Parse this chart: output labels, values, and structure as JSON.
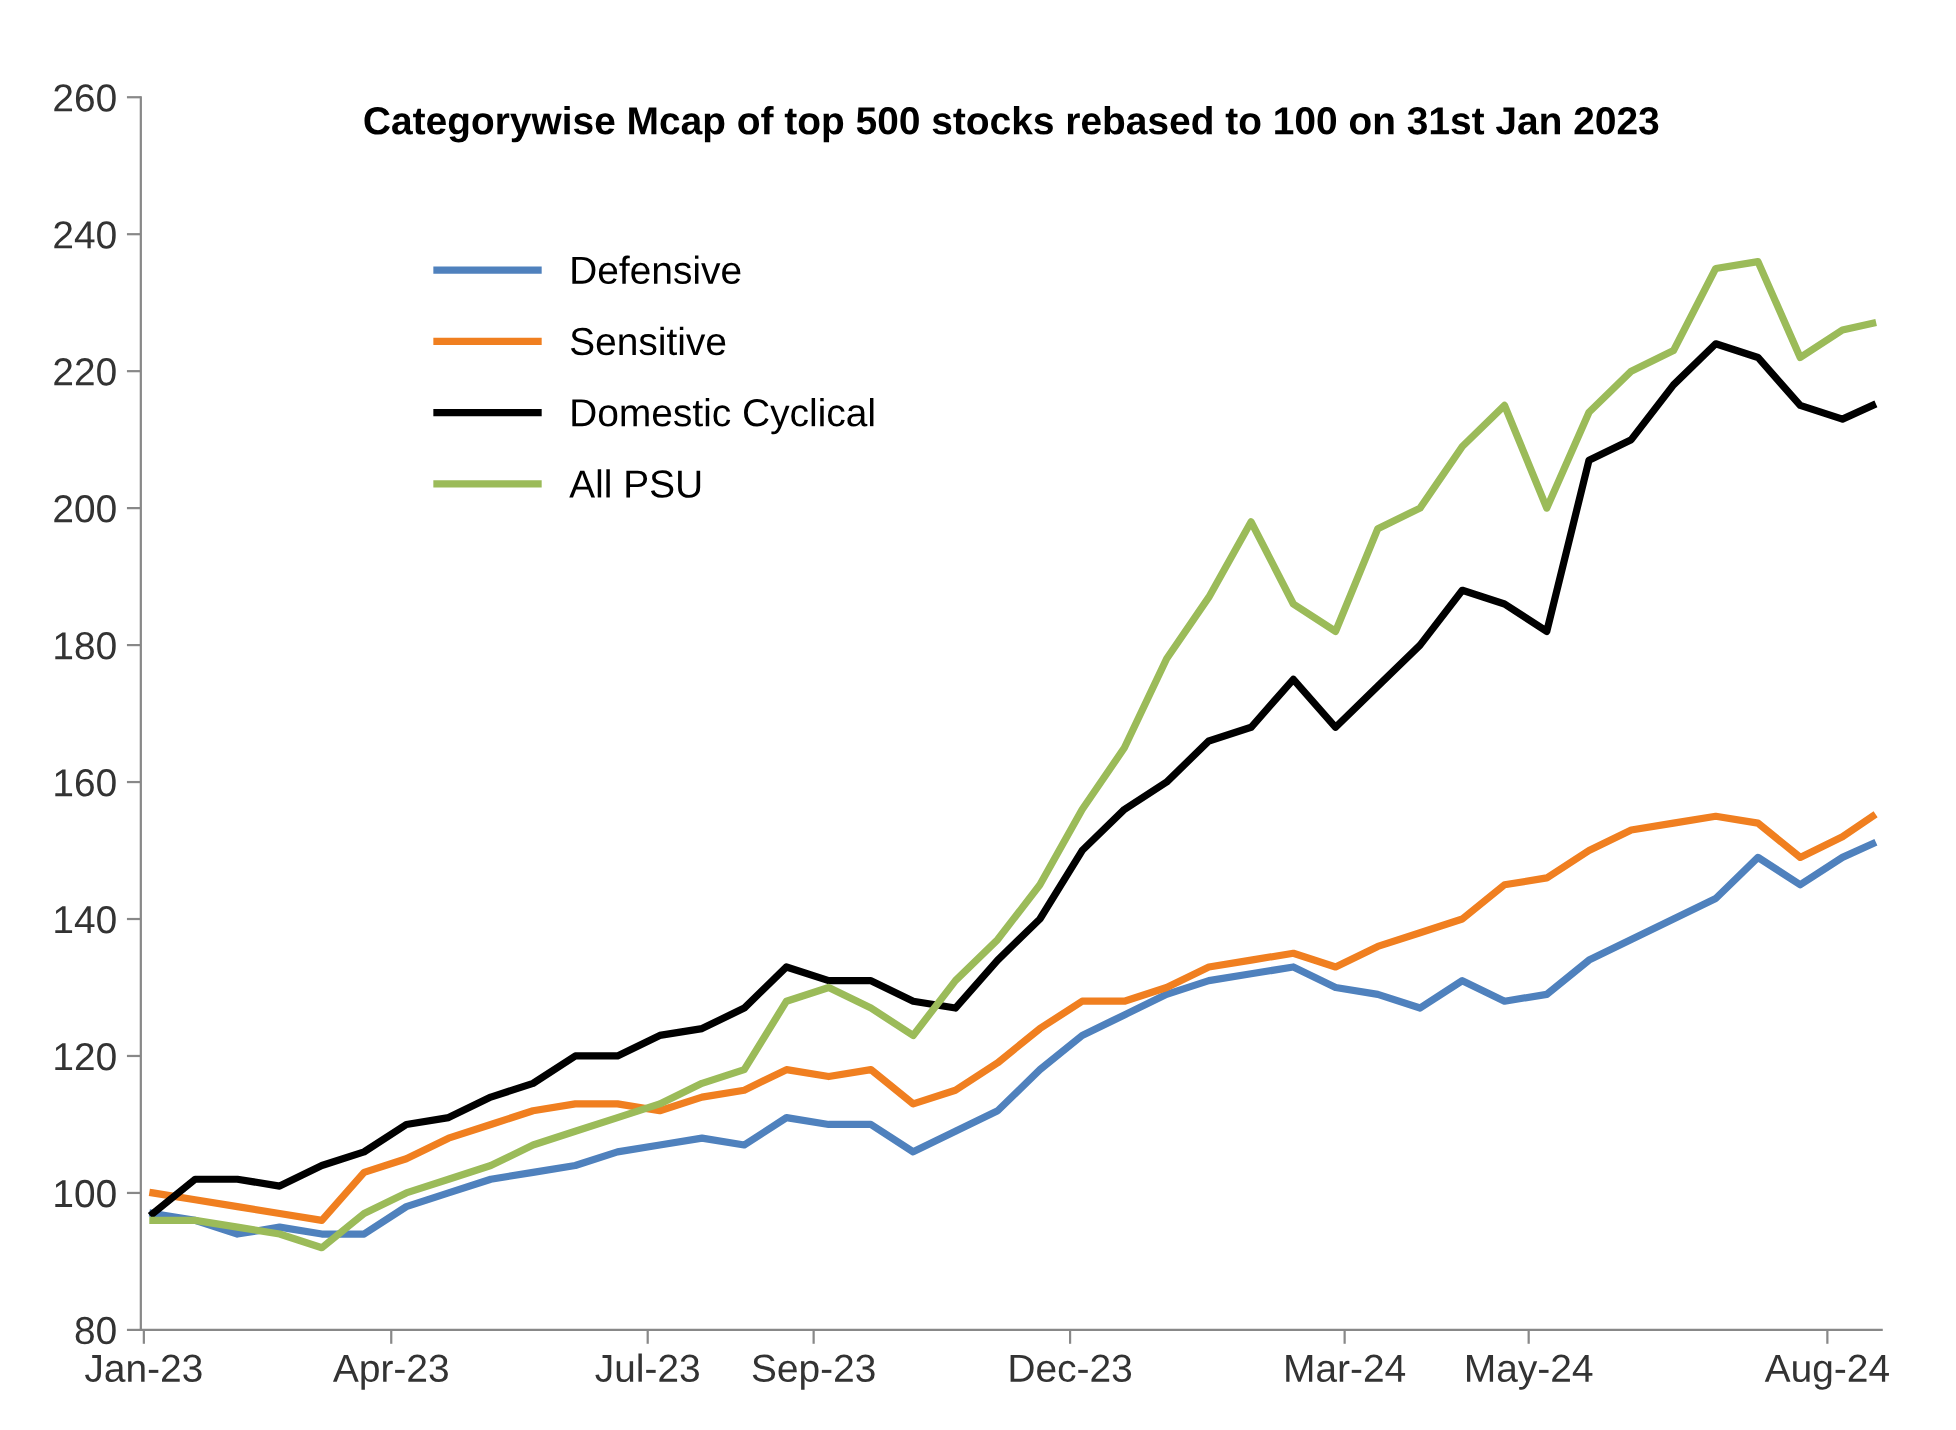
{
  "chart_data": {
    "type": "line",
    "title": "Categorywise Mcap of top 500 stocks rebased to 100 on 31st Jan 2023",
    "x": [
      "2023-01-31",
      "2023-02-14",
      "2023-02-28",
      "2023-03-14",
      "2023-03-28",
      "2023-04-11",
      "2023-04-25",
      "2023-05-09",
      "2023-05-23",
      "2023-06-06",
      "2023-06-20",
      "2023-07-04",
      "2023-07-18",
      "2023-08-01",
      "2023-08-15",
      "2023-08-29",
      "2023-09-12",
      "2023-09-26",
      "2023-10-10",
      "2023-10-24",
      "2023-11-07",
      "2023-11-21",
      "2023-12-05",
      "2023-12-19",
      "2024-01-02",
      "2024-01-16",
      "2024-01-30",
      "2024-02-13",
      "2024-02-27",
      "2024-03-12",
      "2024-03-26",
      "2024-04-09",
      "2024-04-23",
      "2024-05-07",
      "2024-05-21",
      "2024-06-04",
      "2024-06-18",
      "2024-07-02",
      "2024-07-16",
      "2024-07-30",
      "2024-08-13",
      "2024-08-23"
    ],
    "series": [
      {
        "name": "Defensive",
        "color": "#4f81bd",
        "values": [
          97,
          96,
          94,
          95,
          94,
          94,
          98,
          100,
          102,
          103,
          104,
          106,
          107,
          108,
          107,
          111,
          110,
          110,
          106,
          109,
          112,
          118,
          123,
          126,
          129,
          131,
          132,
          133,
          130,
          129,
          127,
          131,
          128,
          129,
          134,
          137,
          140,
          143,
          149,
          145,
          149,
          151
        ]
      },
      {
        "name": "Sensitive",
        "color": "#f07f20",
        "values": [
          100,
          99,
          98,
          97,
          96,
          103,
          105,
          108,
          110,
          112,
          113,
          113,
          112,
          114,
          115,
          118,
          117,
          118,
          113,
          115,
          119,
          124,
          128,
          128,
          130,
          133,
          134,
          135,
          133,
          136,
          138,
          140,
          145,
          146,
          150,
          153,
          154,
          155,
          154,
          149,
          152,
          155
        ]
      },
      {
        "name": "Domestic Cyclical",
        "color": "#000000",
        "values": [
          97,
          102,
          102,
          101,
          104,
          106,
          110,
          111,
          114,
          116,
          120,
          120,
          123,
          124,
          127,
          133,
          131,
          131,
          128,
          127,
          134,
          140,
          150,
          156,
          160,
          166,
          168,
          175,
          168,
          174,
          180,
          188,
          186,
          182,
          207,
          210,
          218,
          224,
          222,
          215,
          213,
          215
        ]
      },
      {
        "name": "All PSU",
        "color": "#9bbb59",
        "values": [
          96,
          96,
          95,
          94,
          92,
          97,
          100,
          102,
          104,
          107,
          109,
          111,
          113,
          116,
          118,
          128,
          130,
          127,
          123,
          131,
          137,
          145,
          156,
          165,
          178,
          187,
          198,
          186,
          182,
          197,
          200,
          209,
          215,
          200,
          214,
          220,
          223,
          235,
          236,
          222,
          226,
          227
        ]
      }
    ],
    "xlim": [
      "2023-01-27",
      "2024-08-26"
    ],
    "xticks": [
      {
        "value": "2023-01-28",
        "label": "Jan-23"
      },
      {
        "value": "2023-04-20",
        "label": "Apr-23"
      },
      {
        "value": "2023-07-14",
        "label": "Jul-23"
      },
      {
        "value": "2023-09-07",
        "label": "Sep-23"
      },
      {
        "value": "2023-12-01",
        "label": "Dec-23"
      },
      {
        "value": "2024-03-01",
        "label": "Mar-24"
      },
      {
        "value": "2024-05-01",
        "label": "May-24"
      },
      {
        "value": "2024-08-08",
        "label": "Aug-24"
      }
    ],
    "ylim": [
      80,
      260
    ],
    "yticks": [
      80,
      100,
      120,
      140,
      160,
      180,
      200,
      220,
      240,
      260
    ],
    "legend": "top left",
    "grid": false
  }
}
